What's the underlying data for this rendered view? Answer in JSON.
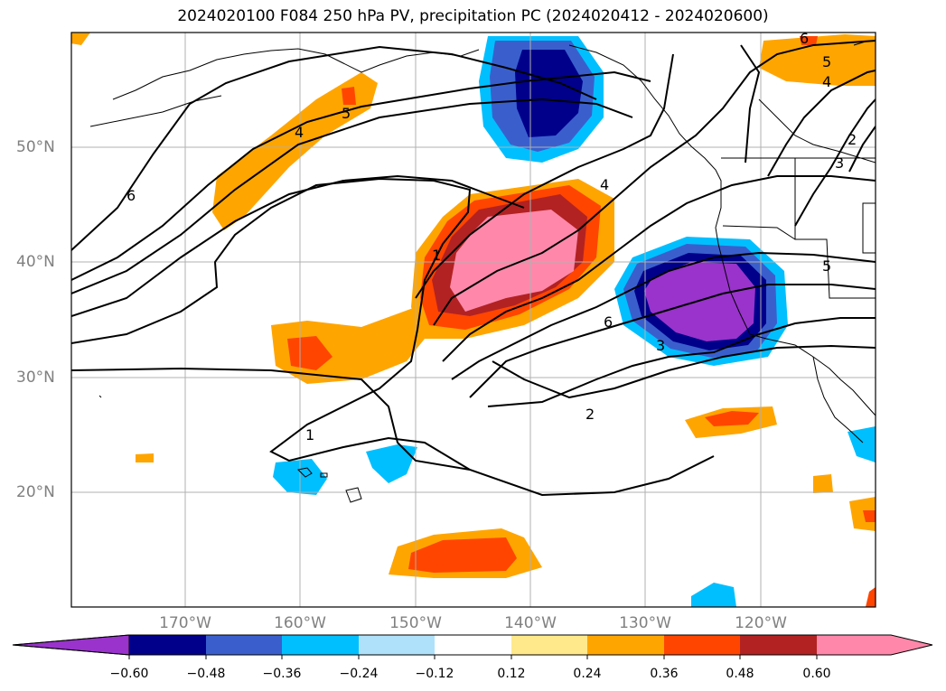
{
  "title": "2024020100 F084 250 hPa PV, precipitation PC (2024020412 - 2024020600)",
  "map": {
    "lon_range": [
      -180,
      -110
    ],
    "lat_range": [
      10,
      60
    ],
    "lon_labels": [
      "170°W",
      "160°W",
      "150°W",
      "140°W",
      "130°W",
      "120°W"
    ],
    "lat_labels": [
      "20°N",
      "30°N",
      "40°N",
      "50°N"
    ],
    "gridlines": true,
    "colors": {
      "gridline": "#b0b0b0",
      "coast": "#000000",
      "contour": "#000000"
    }
  },
  "pv_contour_labels": [
    "6",
    "5",
    "4",
    "1",
    "4",
    "6",
    "3",
    "2",
    "1",
    "5",
    "4",
    "3",
    "2",
    "5",
    "6"
  ],
  "colorbar": {
    "ticks": [
      "−0.60",
      "−0.48",
      "−0.36",
      "−0.24",
      "−0.12",
      "0.12",
      "0.24",
      "0.36",
      "0.48",
      "0.60"
    ],
    "colors": [
      "#9933cc",
      "#00008b",
      "#3a5fcd",
      "#00bfff",
      "#afe1fa",
      "#ffffff",
      "#ffe98a",
      "#ffa500",
      "#ff4500",
      "#b22222",
      "#ff88aa"
    ],
    "extend": "both"
  }
}
